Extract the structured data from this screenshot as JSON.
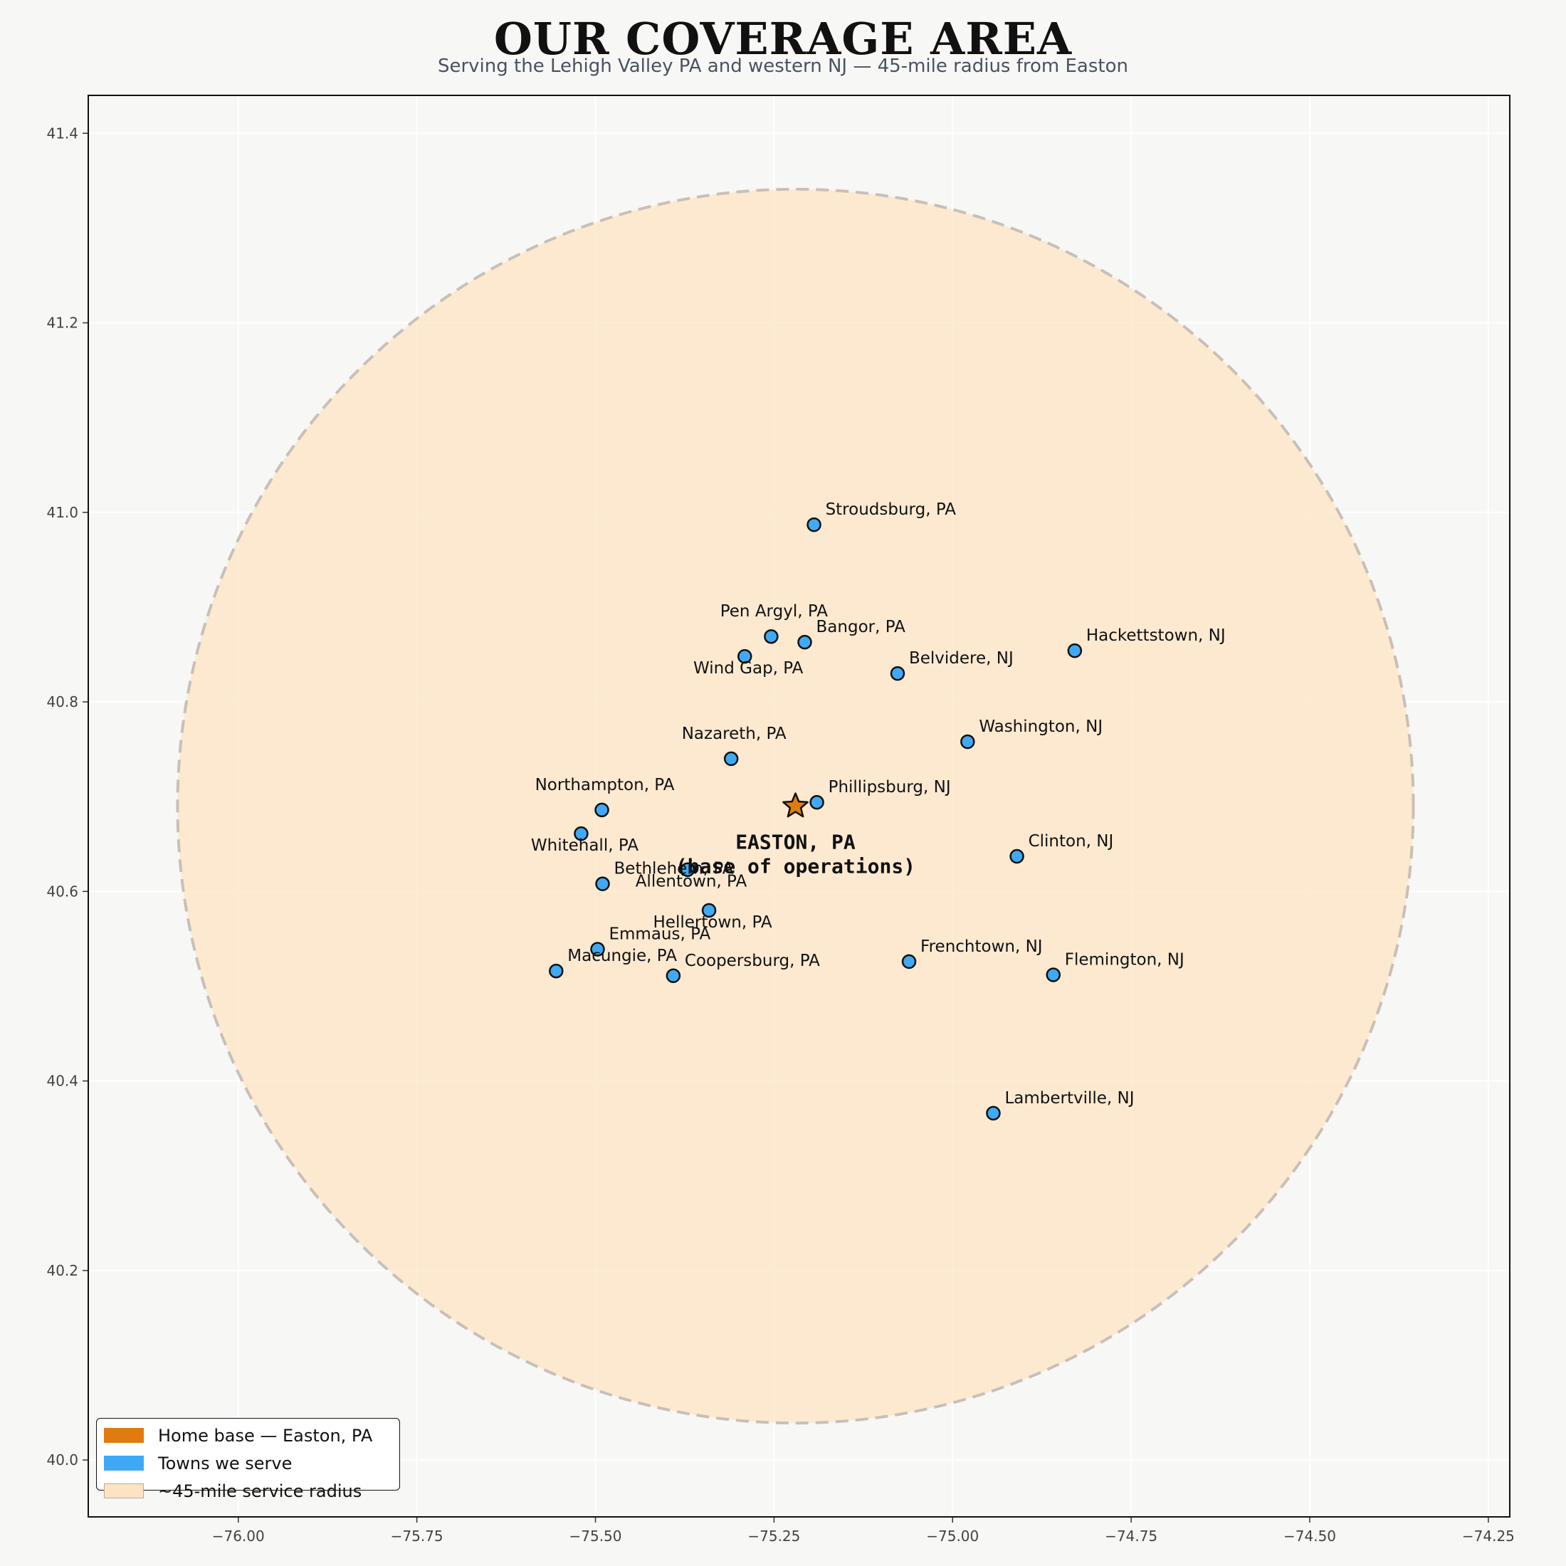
{
  "title": "OUR COVERAGE AREA",
  "subtitle": "Serving the Lehigh Valley PA and western NJ — 45-mile radius from Easton",
  "colors": {
    "home": "#e07b10",
    "town": "#3fa9f5",
    "radius_fill": "#fde3c2",
    "radius_edge": "#c8c0b8",
    "background": "#f7f7f5"
  },
  "legend": {
    "placement": "lower-left",
    "items": [
      {
        "label": "Home base — Easton, PA",
        "color": "#e07b10",
        "kind": "home"
      },
      {
        "label": "Towns we serve",
        "color": "#3fa9f5",
        "kind": "town"
      },
      {
        "label": "~45-mile service radius",
        "color": "#fde3c2",
        "kind": "radius"
      }
    ]
  },
  "chart_data": {
    "type": "scatter",
    "grid": true,
    "xlim": [
      -76.21,
      -74.22
    ],
    "ylim": [
      39.94,
      41.44
    ],
    "xticks": [
      -76.0,
      -75.75,
      -75.5,
      -75.25,
      -75.0,
      -74.75,
      -74.5,
      -74.25
    ],
    "xtick_labels": [
      "−76.00",
      "−75.75",
      "−75.50",
      "−75.25",
      "−75.00",
      "−74.75",
      "−74.50",
      "−74.25"
    ],
    "yticks": [
      40.0,
      40.2,
      40.4,
      40.6,
      40.8,
      41.0,
      41.2,
      41.4
    ],
    "ytick_labels": [
      "40.0",
      "40.2",
      "40.4",
      "40.6",
      "40.8",
      "41.0",
      "41.2",
      "41.4"
    ],
    "home": {
      "lon": -75.22,
      "lat": 40.69,
      "label_lines": [
        "EASTON, PA",
        "(base of operations)"
      ]
    },
    "service_radius": {
      "center_lon": -75.22,
      "center_lat": 40.69,
      "radius_miles": 45,
      "lon_radius": 0.865,
      "lat_radius": 0.651
    },
    "towns": [
      {
        "name": "Stroudsburg, PA",
        "lon": -75.194,
        "lat": 40.987,
        "label_pos": "ur"
      },
      {
        "name": "Pen Argyl, PA",
        "lon": -75.254,
        "lat": 40.869,
        "label_pos": "up"
      },
      {
        "name": "Bangor, PA",
        "lon": -75.207,
        "lat": 40.863,
        "label_pos": "ur"
      },
      {
        "name": "Wind Gap, PA",
        "lon": -75.291,
        "lat": 40.848,
        "label_pos": "below"
      },
      {
        "name": "Belvidere, NJ",
        "lon": -75.077,
        "lat": 40.83,
        "label_pos": "ur"
      },
      {
        "name": "Hackettstown, NJ",
        "lon": -74.829,
        "lat": 40.854,
        "label_pos": "ur"
      },
      {
        "name": "Washington, NJ",
        "lon": -74.979,
        "lat": 40.758,
        "label_pos": "ur"
      },
      {
        "name": "Nazareth, PA",
        "lon": -75.31,
        "lat": 40.74,
        "label_pos": "up"
      },
      {
        "name": "Northampton, PA",
        "lon": -75.491,
        "lat": 40.686,
        "label_pos": "up"
      },
      {
        "name": "Phillipsburg, NJ",
        "lon": -75.19,
        "lat": 40.694,
        "label_pos": "ur"
      },
      {
        "name": "Whitehall, PA",
        "lon": -75.52,
        "lat": 40.661,
        "label_pos": "below"
      },
      {
        "name": "Clinton, NJ",
        "lon": -74.91,
        "lat": 40.637,
        "label_pos": "ur"
      },
      {
        "name": "Allentown, PA",
        "lon": -75.371,
        "lat": 40.623,
        "label_pos": "below"
      },
      {
        "name": "Bethlehem, PA",
        "lon": -75.49,
        "lat": 40.608,
        "label_pos": "ur"
      },
      {
        "name": "Hellertown, PA",
        "lon": -75.341,
        "lat": 40.58,
        "label_pos": "below"
      },
      {
        "name": "Emmaus, PA",
        "lon": -75.497,
        "lat": 40.539,
        "label_pos": "ur"
      },
      {
        "name": "Frenchtown, NJ",
        "lon": -75.061,
        "lat": 40.526,
        "label_pos": "ur"
      },
      {
        "name": "Flemington, NJ",
        "lon": -74.859,
        "lat": 40.512,
        "label_pos": "ur"
      },
      {
        "name": "Macungie, PA",
        "lon": -75.555,
        "lat": 40.516,
        "label_pos": "ur"
      },
      {
        "name": "Coopersburg, PA",
        "lon": -75.391,
        "lat": 40.511,
        "label_pos": "ur"
      },
      {
        "name": "Lambertville, NJ",
        "lon": -74.943,
        "lat": 40.366,
        "label_pos": "ur"
      }
    ]
  }
}
